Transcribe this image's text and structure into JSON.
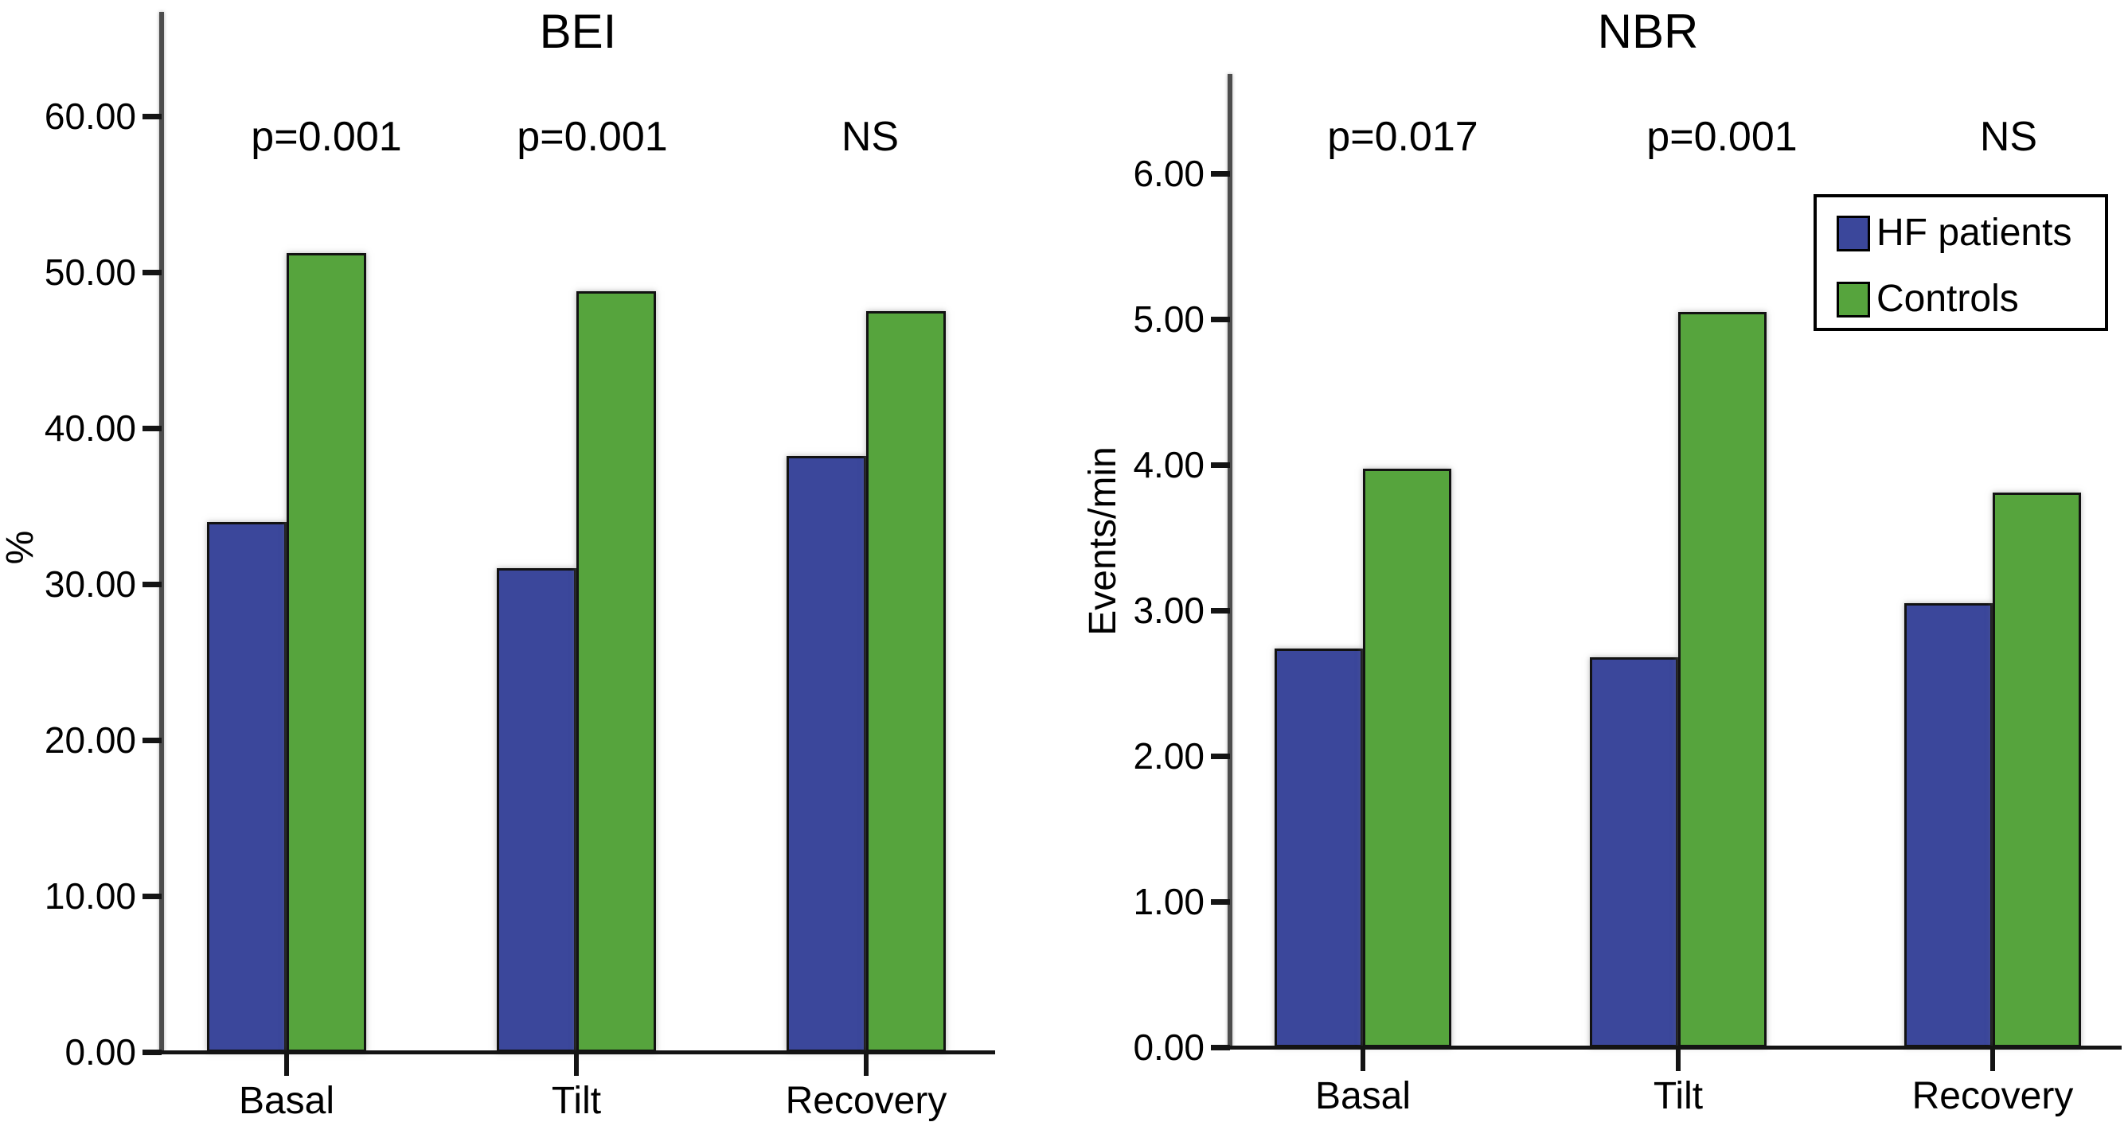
{
  "figure": {
    "background": "#ffffff",
    "text_color": "#000000",
    "axis_line_color": "#4d4d4d",
    "tick_color": "#141414",
    "series_colors": {
      "hf": "#3b479b",
      "controls": "#56a43d"
    }
  },
  "legend": {
    "items": [
      {
        "key": "hf",
        "label": "HF patients"
      },
      {
        "key": "controls",
        "label": "Controls"
      }
    ]
  },
  "chart_data": [
    {
      "type": "bar",
      "title": "BEI",
      "ylabel": "%",
      "xlabel": "",
      "categories": [
        "Basal",
        "Tilt",
        "Recovery"
      ],
      "series": [
        {
          "name": "HF patients",
          "key": "hf",
          "values": [
            34.0,
            31.0,
            38.2
          ]
        },
        {
          "name": "Controls",
          "key": "controls",
          "values": [
            51.2,
            48.8,
            47.5
          ]
        }
      ],
      "annotations": [
        "p=0.001",
        "p=0.001",
        "NS"
      ],
      "ylim": [
        0,
        60
      ],
      "ytick_step": 10,
      "ytick_labels": [
        "0.00",
        "10.00",
        "20.00",
        "30.00",
        "40.00",
        "50.00",
        "60.00"
      ],
      "grid": false,
      "legend_position": "none"
    },
    {
      "type": "bar",
      "title": "NBR",
      "ylabel": "Events/min",
      "xlabel": "",
      "categories": [
        "Basal",
        "Tilt",
        "Recovery"
      ],
      "series": [
        {
          "name": "HF patients",
          "key": "hf",
          "values": [
            2.74,
            2.68,
            3.05
          ]
        },
        {
          "name": "Controls",
          "key": "controls",
          "values": [
            3.97,
            5.05,
            3.81
          ]
        }
      ],
      "annotations": [
        "p=0.017",
        "p=0.001",
        "NS"
      ],
      "ylim": [
        0,
        6
      ],
      "ytick_step": 1,
      "ytick_labels": [
        "0.00",
        "1.00",
        "2.00",
        "3.00",
        "4.00",
        "5.00",
        "6.00"
      ],
      "grid": false,
      "legend_position": "top-right"
    }
  ]
}
